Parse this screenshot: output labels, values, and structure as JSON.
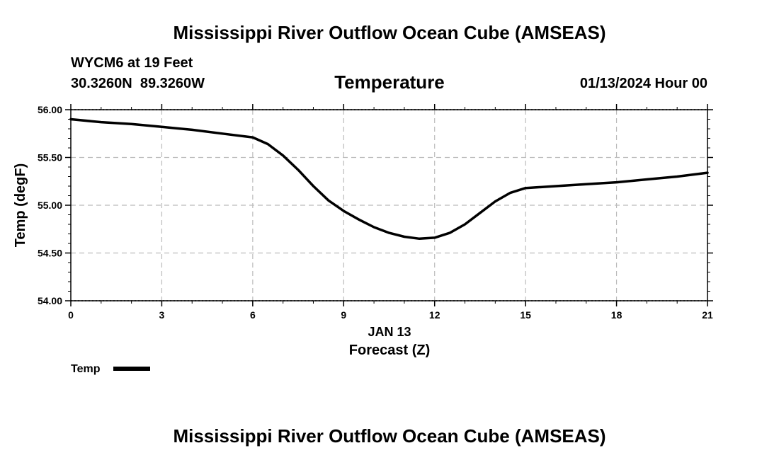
{
  "chart_data": {
    "type": "line",
    "title": "Mississippi River Outflow Ocean Cube (AMSEAS)",
    "footer_title": "Mississippi River Outflow Ocean Cube (AMSEAS)",
    "station": "WYCM6 at 19 Feet",
    "coords": "30.3260N  89.3260W",
    "subtitle": "Temperature",
    "datetime": "01/13/2024 Hour 00",
    "ylabel": "Temp (degF)",
    "xlabel": "Forecast (Z)",
    "date_label": "JAN 13",
    "xlim": [
      0,
      21
    ],
    "ylim": [
      54.0,
      56.0
    ],
    "xticks": [
      0,
      3,
      6,
      9,
      12,
      15,
      18,
      21
    ],
    "xtick_labels": [
      "0",
      "3",
      "6",
      "9",
      "12",
      "15",
      "18",
      "21"
    ],
    "yticks": [
      54.0,
      54.5,
      55.0,
      55.5,
      56.0
    ],
    "ytick_labels": [
      "54.00",
      "54.50",
      "55.00",
      "55.50",
      "56.00"
    ],
    "grid": true,
    "legend": "bottom-left",
    "series": [
      {
        "name": "Temp",
        "x": [
          0,
          1,
          2,
          3,
          4,
          5,
          6,
          6.5,
          7,
          7.5,
          8,
          8.5,
          9,
          9.5,
          10,
          10.5,
          11,
          11.5,
          12,
          12.5,
          13,
          13.5,
          14,
          14.5,
          15,
          16,
          17,
          18,
          19,
          20,
          21
        ],
        "values": [
          55.9,
          55.87,
          55.85,
          55.82,
          55.79,
          55.75,
          55.71,
          55.64,
          55.52,
          55.37,
          55.2,
          55.05,
          54.94,
          54.85,
          54.77,
          54.71,
          54.67,
          54.65,
          54.66,
          54.71,
          54.8,
          54.92,
          55.04,
          55.13,
          55.18,
          55.2,
          55.22,
          55.24,
          55.27,
          55.3,
          55.34
        ]
      }
    ]
  },
  "colors": {
    "line": "#000000",
    "grid": "#bbbbbb",
    "frame": "#000000"
  }
}
